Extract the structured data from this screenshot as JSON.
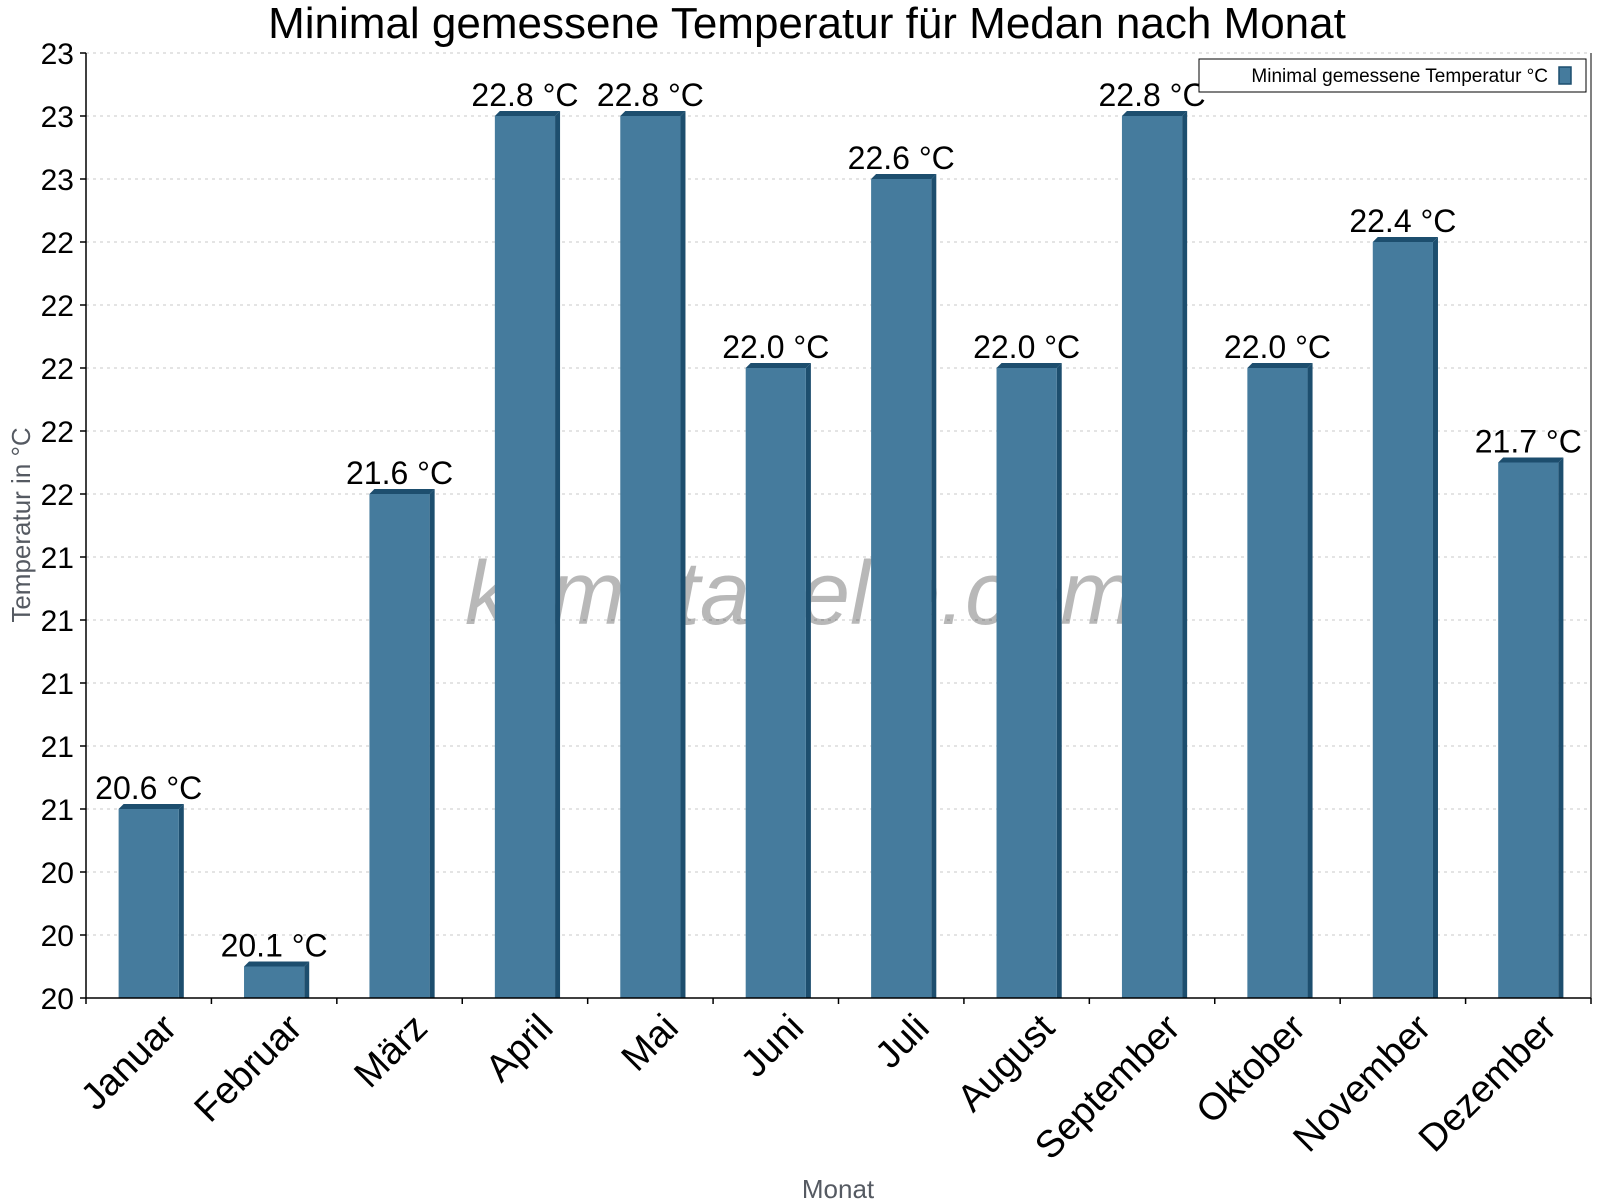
{
  "chart_data": {
    "type": "bar",
    "title": "Minimal gemessene Temperatur für Medan nach Monat",
    "xlabel": "Monat",
    "ylabel": "Temperatur in °C",
    "categories": [
      "Januar",
      "Februar",
      "März",
      "April",
      "Mai",
      "Juni",
      "Juli",
      "August",
      "September",
      "Oktober",
      "November",
      "Dezember"
    ],
    "series": [
      {
        "name": "Minimal gemessene Temperatur °C",
        "values": [
          20.6,
          20.1,
          21.6,
          22.8,
          22.8,
          22.0,
          22.6,
          22.0,
          22.8,
          22.0,
          22.4,
          21.7
        ],
        "labels": [
          "20.6 °C",
          "20.1 °C",
          "21.6 °C",
          "22.8 °C",
          "22.8 °C",
          "22.0 °C",
          "22.6 °C",
          "22.0 °C",
          "22.8 °C",
          "22.0 °C",
          "22.4 °C",
          "21.7 °C"
        ]
      }
    ],
    "ylim": [
      20.0,
      23.0
    ],
    "yticks": [
      20.0,
      20.2,
      20.4,
      20.6,
      20.8,
      21.0,
      21.2,
      21.4,
      21.6,
      21.8,
      22.0,
      22.2,
      22.4,
      22.6,
      22.8,
      23.0
    ],
    "yticklabels": [
      "20",
      "20",
      "20",
      "21",
      "21",
      "21",
      "21",
      "21",
      "22",
      "22",
      "22",
      "22",
      "22",
      "23",
      "23",
      "23"
    ],
    "grid": true,
    "legend_position": "top-right",
    "watermark": "klimatabelle.com",
    "colors": {
      "bar": "#457b9d",
      "bar_edge": "#1d4e6e",
      "grid": "#c8c8c8"
    }
  }
}
